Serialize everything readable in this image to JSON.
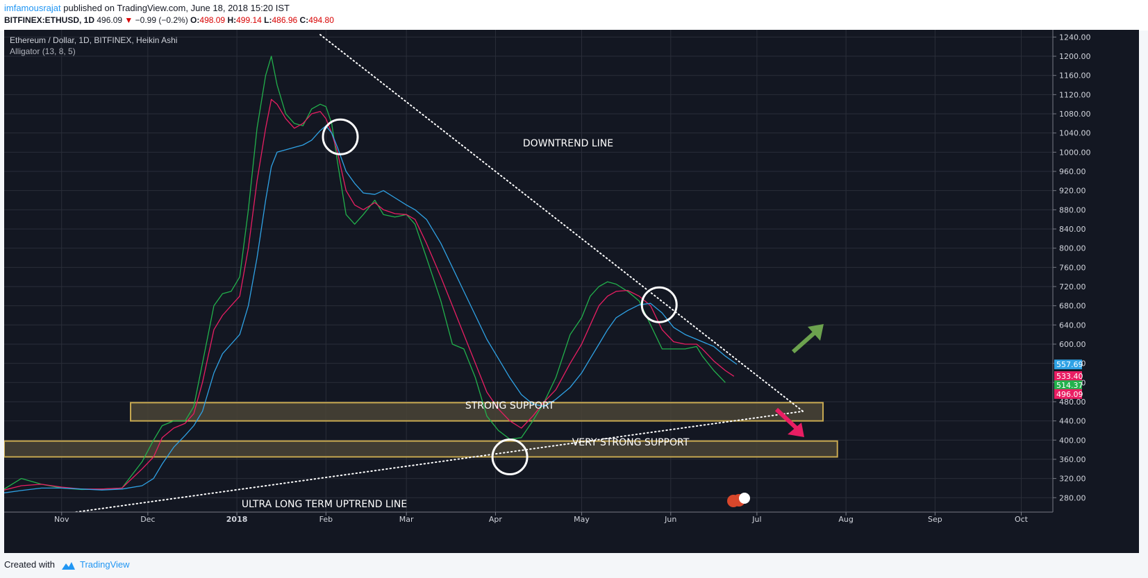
{
  "header": {
    "author": "imfamousrajat",
    "published_text": "published on TradingView.com, June 18, 2018 15:20 IST",
    "symbol": "BITFINEX:ETHUSD, 1D",
    "last_price": "496.09",
    "change_arrow": "▼",
    "change": "−0.99 (−0.2%)",
    "open_label": "O:",
    "open_value": "498.09",
    "high_label": "H:",
    "high_value": "499.14",
    "low_label": "L:",
    "low_value": "486.96",
    "close_label": "C:",
    "close_value": "494.80"
  },
  "legend": {
    "title": "Ethereum / Dollar, 1D, BITFINEX, Heikin Ashi",
    "indicator": "Alligator (13, 8, 5)"
  },
  "annotations": {
    "downtrend": "DOWNTREND LINE",
    "strong_support": "STRONG SUPPORT",
    "very_strong_support": "VERY STRONG SUPPORT",
    "uptrend": "ULTRA LONG TERM UPTREND LINE"
  },
  "footer": {
    "created_with": "Created with",
    "brand": "TradingView"
  },
  "colors": {
    "background": "#131722",
    "grid": "#2a2e39",
    "axis_text": "#d1d4dc",
    "jaw": "#2fa2e5",
    "teeth": "#e91e63",
    "lips": "#22b14c",
    "support_fill": "#4a4436",
    "support_border": "#c8a951",
    "arrow_up": "#6ca24e",
    "arrow_down": "#e91e63"
  },
  "chart_data": {
    "type": "line",
    "title": "Ethereum / Dollar, 1D, BITFINEX, Heikin Ashi",
    "y_scale": "linear",
    "ylim": [
      250,
      1255
    ],
    "grid": true,
    "y_ticks": [
      "280.00",
      "320.00",
      "360.00",
      "400.00",
      "440.00",
      "480.00",
      "520.00",
      "560.00",
      "600.00",
      "640.00",
      "680.00",
      "720.00",
      "760.00",
      "800.00",
      "840.00",
      "880.00",
      "920.00",
      "960.00",
      "1000.00",
      "1040.00",
      "1080.00",
      "1120.00",
      "1160.00",
      "1200.00",
      "1240.00"
    ],
    "x_ticks": [
      {
        "label": "Nov",
        "date": "2017-11-01",
        "bold": false
      },
      {
        "label": "Dec",
        "date": "2017-12-01",
        "bold": false
      },
      {
        "label": "2018",
        "date": "2018-01-01",
        "bold": true
      },
      {
        "label": "Feb",
        "date": "2018-02-01",
        "bold": false
      },
      {
        "label": "Mar",
        "date": "2018-03-01",
        "bold": false
      },
      {
        "label": "Apr",
        "date": "2018-04-01",
        "bold": false
      },
      {
        "label": "May",
        "date": "2018-05-01",
        "bold": false
      },
      {
        "label": "Jun",
        "date": "2018-06-01",
        "bold": false
      },
      {
        "label": "Jul",
        "date": "2018-07-01",
        "bold": false
      },
      {
        "label": "Aug",
        "date": "2018-08-01",
        "bold": false
      },
      {
        "label": "Sep",
        "date": "2018-09-01",
        "bold": false
      },
      {
        "label": "Oct",
        "date": "2018-10-01",
        "bold": false
      }
    ],
    "xlim": [
      "2017-10-12",
      "2018-10-12"
    ],
    "series": [
      {
        "role": "lips",
        "color": "#22b14c",
        "points": [
          [
            "2017-10-12",
            298
          ],
          [
            "2017-10-18",
            320
          ],
          [
            "2017-10-25",
            308
          ],
          [
            "2017-11-01",
            300
          ],
          [
            "2017-11-08",
            297
          ],
          [
            "2017-11-15",
            298
          ],
          [
            "2017-11-22",
            300
          ],
          [
            "2017-11-29",
            355
          ],
          [
            "2017-12-03",
            400
          ],
          [
            "2017-12-06",
            430
          ],
          [
            "2017-12-10",
            440
          ],
          [
            "2017-12-14",
            440
          ],
          [
            "2017-12-17",
            470
          ],
          [
            "2017-12-20",
            560
          ],
          [
            "2017-12-24",
            680
          ],
          [
            "2017-12-27",
            705
          ],
          [
            "2017-12-30",
            710
          ],
          [
            "2018-01-02",
            740
          ],
          [
            "2018-01-05",
            880
          ],
          [
            "2018-01-08",
            1050
          ],
          [
            "2018-01-11",
            1160
          ],
          [
            "2018-01-13",
            1200
          ],
          [
            "2018-01-15",
            1140
          ],
          [
            "2018-01-18",
            1080
          ],
          [
            "2018-01-21",
            1060
          ],
          [
            "2018-01-24",
            1055
          ],
          [
            "2018-01-27",
            1090
          ],
          [
            "2018-01-30",
            1100
          ],
          [
            "2018-02-01",
            1095
          ],
          [
            "2018-02-03",
            1060
          ],
          [
            "2018-02-05",
            980
          ],
          [
            "2018-02-08",
            870
          ],
          [
            "2018-02-11",
            850
          ],
          [
            "2018-02-14",
            870
          ],
          [
            "2018-02-18",
            900
          ],
          [
            "2018-02-21",
            870
          ],
          [
            "2018-02-25",
            865
          ],
          [
            "2018-03-01",
            870
          ],
          [
            "2018-03-04",
            850
          ],
          [
            "2018-03-08",
            780
          ],
          [
            "2018-03-13",
            690
          ],
          [
            "2018-03-17",
            600
          ],
          [
            "2018-03-21",
            590
          ],
          [
            "2018-03-25",
            530
          ],
          [
            "2018-03-29",
            450
          ],
          [
            "2018-04-02",
            420
          ],
          [
            "2018-04-06",
            402
          ],
          [
            "2018-04-10",
            405
          ],
          [
            "2018-04-14",
            440
          ],
          [
            "2018-04-18",
            480
          ],
          [
            "2018-04-22",
            530
          ],
          [
            "2018-04-27",
            620
          ],
          [
            "2018-05-01",
            655
          ],
          [
            "2018-05-04",
            700
          ],
          [
            "2018-05-07",
            720
          ],
          [
            "2018-05-10",
            730
          ],
          [
            "2018-05-13",
            725
          ],
          [
            "2018-05-17",
            710
          ],
          [
            "2018-05-21",
            690
          ],
          [
            "2018-05-25",
            640
          ],
          [
            "2018-05-29",
            590
          ],
          [
            "2018-06-02",
            590
          ],
          [
            "2018-06-06",
            590
          ],
          [
            "2018-06-10",
            595
          ],
          [
            "2018-06-12",
            575
          ],
          [
            "2018-06-16",
            545
          ],
          [
            "2018-06-20",
            520
          ]
        ]
      },
      {
        "role": "teeth",
        "color": "#e91e63",
        "points": [
          [
            "2017-10-12",
            296
          ],
          [
            "2017-10-18",
            305
          ],
          [
            "2017-10-25",
            308
          ],
          [
            "2017-11-01",
            302
          ],
          [
            "2017-11-08",
            298
          ],
          [
            "2017-11-15",
            298
          ],
          [
            "2017-11-22",
            300
          ],
          [
            "2017-11-29",
            340
          ],
          [
            "2017-12-03",
            365
          ],
          [
            "2017-12-06",
            405
          ],
          [
            "2017-12-10",
            425
          ],
          [
            "2017-12-14",
            435
          ],
          [
            "2017-12-17",
            455
          ],
          [
            "2017-12-20",
            520
          ],
          [
            "2017-12-24",
            630
          ],
          [
            "2017-12-27",
            660
          ],
          [
            "2017-12-30",
            680
          ],
          [
            "2018-01-02",
            700
          ],
          [
            "2018-01-05",
            800
          ],
          [
            "2018-01-08",
            940
          ],
          [
            "2018-01-11",
            1050
          ],
          [
            "2018-01-13",
            1110
          ],
          [
            "2018-01-15",
            1100
          ],
          [
            "2018-01-18",
            1070
          ],
          [
            "2018-01-21",
            1050
          ],
          [
            "2018-01-24",
            1060
          ],
          [
            "2018-01-27",
            1080
          ],
          [
            "2018-01-30",
            1085
          ],
          [
            "2018-02-01",
            1070
          ],
          [
            "2018-02-03",
            1040
          ],
          [
            "2018-02-05",
            1000
          ],
          [
            "2018-02-08",
            920
          ],
          [
            "2018-02-11",
            890
          ],
          [
            "2018-02-14",
            880
          ],
          [
            "2018-02-18",
            895
          ],
          [
            "2018-02-21",
            880
          ],
          [
            "2018-02-25",
            872
          ],
          [
            "2018-03-01",
            870
          ],
          [
            "2018-03-04",
            860
          ],
          [
            "2018-03-08",
            810
          ],
          [
            "2018-03-13",
            740
          ],
          [
            "2018-03-17",
            680
          ],
          [
            "2018-03-21",
            620
          ],
          [
            "2018-03-25",
            560
          ],
          [
            "2018-03-29",
            500
          ],
          [
            "2018-04-02",
            465
          ],
          [
            "2018-04-06",
            440
          ],
          [
            "2018-04-10",
            425
          ],
          [
            "2018-04-14",
            450
          ],
          [
            "2018-04-18",
            480
          ],
          [
            "2018-04-22",
            505
          ],
          [
            "2018-04-27",
            560
          ],
          [
            "2018-05-01",
            600
          ],
          [
            "2018-05-04",
            640
          ],
          [
            "2018-05-07",
            680
          ],
          [
            "2018-05-10",
            700
          ],
          [
            "2018-05-13",
            710
          ],
          [
            "2018-05-17",
            712
          ],
          [
            "2018-05-21",
            700
          ],
          [
            "2018-05-25",
            680
          ],
          [
            "2018-05-29",
            630
          ],
          [
            "2018-06-02",
            605
          ],
          [
            "2018-06-06",
            600
          ],
          [
            "2018-06-10",
            600
          ],
          [
            "2018-06-12",
            590
          ],
          [
            "2018-06-16",
            565
          ],
          [
            "2018-06-20",
            545
          ],
          [
            "2018-06-23",
            533
          ]
        ]
      },
      {
        "role": "jaw",
        "color": "#2fa2e5",
        "points": [
          [
            "2017-10-12",
            290
          ],
          [
            "2017-10-18",
            295
          ],
          [
            "2017-10-25",
            300
          ],
          [
            "2017-11-01",
            300
          ],
          [
            "2017-11-08",
            298
          ],
          [
            "2017-11-15",
            296
          ],
          [
            "2017-11-22",
            298
          ],
          [
            "2017-11-29",
            305
          ],
          [
            "2017-12-03",
            320
          ],
          [
            "2017-12-06",
            350
          ],
          [
            "2017-12-10",
            385
          ],
          [
            "2017-12-14",
            410
          ],
          [
            "2017-12-17",
            430
          ],
          [
            "2017-12-20",
            460
          ],
          [
            "2017-12-24",
            540
          ],
          [
            "2017-12-27",
            580
          ],
          [
            "2017-12-30",
            600
          ],
          [
            "2018-01-02",
            620
          ],
          [
            "2018-01-05",
            680
          ],
          [
            "2018-01-08",
            780
          ],
          [
            "2018-01-11",
            900
          ],
          [
            "2018-01-13",
            970
          ],
          [
            "2018-01-15",
            1000
          ],
          [
            "2018-01-18",
            1005
          ],
          [
            "2018-01-21",
            1010
          ],
          [
            "2018-01-24",
            1015
          ],
          [
            "2018-01-27",
            1025
          ],
          [
            "2018-01-30",
            1045
          ],
          [
            "2018-02-01",
            1055
          ],
          [
            "2018-02-03",
            1040
          ],
          [
            "2018-02-05",
            1010
          ],
          [
            "2018-02-08",
            960
          ],
          [
            "2018-02-11",
            935
          ],
          [
            "2018-02-14",
            915
          ],
          [
            "2018-02-18",
            912
          ],
          [
            "2018-02-21",
            920
          ],
          [
            "2018-02-25",
            905
          ],
          [
            "2018-03-01",
            890
          ],
          [
            "2018-03-04",
            880
          ],
          [
            "2018-03-08",
            860
          ],
          [
            "2018-03-13",
            810
          ],
          [
            "2018-03-17",
            760
          ],
          [
            "2018-03-21",
            710
          ],
          [
            "2018-03-25",
            660
          ],
          [
            "2018-03-29",
            610
          ],
          [
            "2018-04-02",
            570
          ],
          [
            "2018-04-06",
            530
          ],
          [
            "2018-04-10",
            495
          ],
          [
            "2018-04-14",
            475
          ],
          [
            "2018-04-18",
            470
          ],
          [
            "2018-04-22",
            485
          ],
          [
            "2018-04-27",
            510
          ],
          [
            "2018-05-01",
            540
          ],
          [
            "2018-05-04",
            570
          ],
          [
            "2018-05-07",
            600
          ],
          [
            "2018-05-10",
            630
          ],
          [
            "2018-05-13",
            655
          ],
          [
            "2018-05-17",
            670
          ],
          [
            "2018-05-21",
            682
          ],
          [
            "2018-05-25",
            685
          ],
          [
            "2018-05-29",
            665
          ],
          [
            "2018-06-02",
            635
          ],
          [
            "2018-06-06",
            620
          ],
          [
            "2018-06-10",
            610
          ],
          [
            "2018-06-12",
            605
          ],
          [
            "2018-06-16",
            595
          ],
          [
            "2018-06-20",
            575
          ],
          [
            "2018-06-24",
            558
          ]
        ]
      }
    ],
    "price_labels": [
      {
        "value": "557.69",
        "price": 557.69,
        "color": "#2fa2e5"
      },
      {
        "value": "533.40",
        "price": 533.4,
        "color": "#e91e63"
      },
      {
        "value": "514.37",
        "price": 514.37,
        "color": "#22b14c"
      },
      {
        "value": "496.09",
        "price": 496.09,
        "color": "#e91e63"
      }
    ],
    "lines": [
      {
        "name": "downtrend-line",
        "from": [
          "2018-01-30",
          1245
        ],
        "to": [
          "2018-07-17",
          460
        ]
      },
      {
        "name": "uptrend-line",
        "from": [
          "2017-11-06",
          250
        ],
        "to": [
          "2018-07-17",
          460
        ]
      }
    ],
    "zones": [
      {
        "name": "strong-support-zone",
        "from_date": "2017-11-25",
        "to_date": "2018-07-24",
        "low": 440,
        "high": 478
      },
      {
        "name": "very-strong-support-zone",
        "from_date": "2017-10-12",
        "to_date": "2018-07-29",
        "low": 365,
        "high": 398
      }
    ],
    "circles": [
      {
        "name": "bearish-cross-circle-feb",
        "date": "2018-02-06",
        "price": 1032
      },
      {
        "name": "support-touch-circle-apr",
        "date": "2018-04-06",
        "price": 365
      },
      {
        "name": "bearish-cross-circle-may",
        "date": "2018-05-28",
        "price": 682
      }
    ]
  }
}
